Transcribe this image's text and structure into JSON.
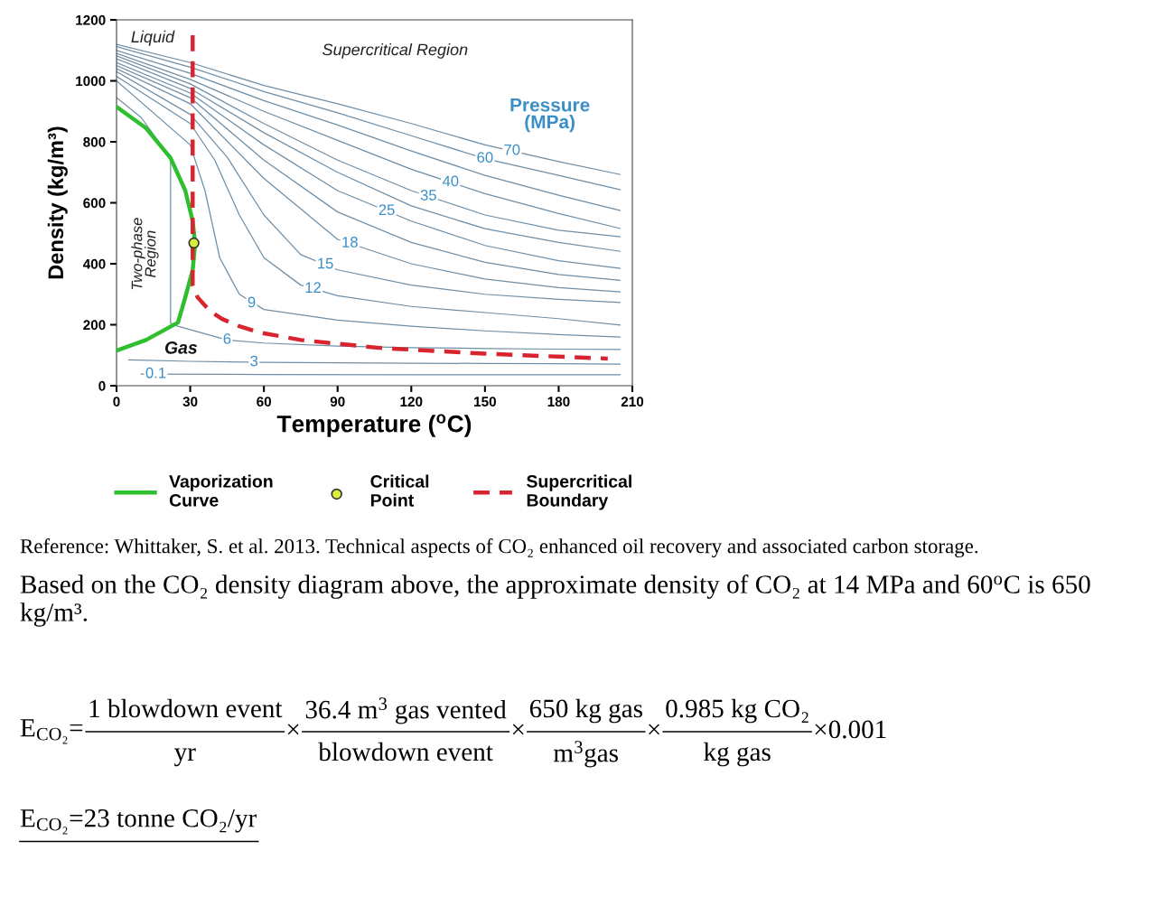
{
  "chart_data": {
    "type": "line",
    "xlabel": "Temperature ($^{o}$C)",
    "ylabel": "Density (kg/m³)",
    "xlim": [
      0,
      210
    ],
    "ylim": [
      0,
      1200
    ],
    "xticks": [
      0,
      30,
      60,
      90,
      120,
      150,
      180,
      210
    ],
    "yticks": [
      0,
      200,
      400,
      600,
      800,
      1000,
      1200
    ],
    "grid": false,
    "legend": "bottom",
    "series": [
      {
        "color": "#6f8ea6",
        "x": [
          0,
          30,
          60,
          90,
          120,
          150,
          180,
          205
        ],
        "values": [
          1120,
          1060,
          985,
          925,
          860,
          790,
          735,
          693
        ]
      },
      {
        "color": "#6f8ea6",
        "x": [
          0,
          30,
          60,
          90,
          120,
          150,
          180,
          205
        ],
        "values": [
          1112,
          1045,
          965,
          895,
          820,
          745,
          690,
          643
        ]
      },
      {
        "color": "#6f8ea6",
        "x": [
          0,
          30,
          60,
          90,
          120,
          150,
          180,
          205
        ],
        "values": [
          1100,
          1025,
          935,
          855,
          770,
          690,
          625,
          575
        ]
      },
      {
        "color": "#6f8ea6",
        "x": [
          0,
          30,
          60,
          90,
          120,
          150,
          180,
          205
        ],
        "values": [
          1090,
          1005,
          900,
          805,
          710,
          630,
          565,
          516
        ]
      },
      {
        "color": "#6f8ea6",
        "x": [
          0,
          30,
          60,
          90,
          120,
          150,
          180,
          205
        ],
        "values": [
          1082,
          990,
          860,
          740,
          640,
          560,
          510,
          489
        ]
      },
      {
        "color": "#6f8ea6",
        "x": [
          0,
          30,
          60,
          90,
          120,
          150,
          180,
          205
        ],
        "values": [
          1072,
          975,
          830,
          700,
          590,
          515,
          470,
          441
        ]
      },
      {
        "color": "#6f8ea6",
        "x": [
          0,
          30,
          60,
          90,
          120,
          150,
          180,
          205
        ],
        "values": [
          1060,
          960,
          790,
          640,
          540,
          460,
          410,
          385
        ]
      },
      {
        "color": "#6f8ea6",
        "x": [
          0,
          30,
          60,
          90,
          120,
          150,
          180,
          205
        ],
        "values": [
          1050,
          945,
          740,
          570,
          470,
          405,
          365,
          346
        ]
      },
      {
        "color": "#6f8ea6",
        "x": [
          0,
          30,
          60,
          90,
          120,
          150,
          180,
          205
        ],
        "values": [
          1040,
          925,
          680,
          480,
          400,
          350,
          322,
          308
        ]
      },
      {
        "color": "#6f8ea6",
        "x": [
          0,
          30,
          45,
          60,
          75,
          90,
          120,
          150,
          180,
          205
        ],
        "values": [
          1030,
          890,
          750,
          560,
          430,
          380,
          330,
          300,
          283,
          273
        ]
      },
      {
        "color": "#6f8ea6",
        "x": [
          0,
          30,
          40,
          50,
          60,
          75,
          90,
          120,
          150,
          180,
          205
        ],
        "values": [
          1015,
          860,
          740,
          560,
          420,
          330,
          295,
          260,
          240,
          220,
          199
        ]
      },
      {
        "color": "#6f8ea6",
        "x": [
          0,
          30,
          36,
          42,
          50,
          60,
          90,
          120,
          150,
          180,
          205
        ],
        "values": [
          1000,
          790,
          640,
          420,
          300,
          250,
          215,
          195,
          180,
          168,
          160
        ]
      },
      {
        "color": "#6f8ea6",
        "x": [
          0,
          10,
          22,
          22,
          25,
          45,
          60,
          90,
          120,
          150,
          180,
          205
        ],
        "values": [
          945,
          880,
          747,
          205,
          195,
          150,
          140,
          130,
          125,
          122,
          120,
          119
        ]
      },
      {
        "color": "#6f8ea6",
        "x": [
          5,
          30,
          60,
          90,
          120,
          150,
          180,
          205
        ],
        "values": [
          85,
          80,
          77,
          75,
          74,
          73,
          72,
          71
        ]
      },
      {
        "color": "#6f8ea6",
        "x": [
          10,
          60,
          120,
          205
        ],
        "values": [
          38,
          37,
          36,
          36
        ]
      },
      {
        "name": "Vaporization\nCurve",
        "color": "#2dbf2d",
        "line_style": "solid",
        "x": [
          0,
          12,
          22,
          28,
          31,
          32,
          31,
          28,
          25,
          12,
          0
        ],
        "values": [
          915,
          845,
          747,
          640,
          540,
          465,
          380,
          290,
          207,
          150,
          115
        ]
      },
      {
        "name": "Critical\nPoint",
        "type": "scatter",
        "marker": "circle",
        "color": "#d9ef3a",
        "x": [
          31.5
        ],
        "values": [
          468
        ]
      },
      {
        "name": "Supercritical\nBoundary",
        "color": "#d9232e",
        "line_style": "dashed",
        "x": [
          31,
          31,
          31,
          33,
          38,
          43,
          50,
          58,
          75,
          107,
          150,
          200
        ],
        "values": [
          1150,
          600,
          330,
          290,
          245,
          219,
          195,
          175,
          150,
          124,
          105,
          89
        ]
      }
    ],
    "annotations": [
      {
        "text": "0.1",
        "x": 16,
        "y": 38
      },
      {
        "text": "3",
        "x": 56,
        "y": 77
      },
      {
        "text": "6",
        "x": 45,
        "y": 150
      },
      {
        "text": "9",
        "x": 55,
        "y": 270
      },
      {
        "text": "12",
        "x": 80,
        "y": 318
      },
      {
        "text": "15",
        "x": 85,
        "y": 397
      },
      {
        "text": "18",
        "x": 95,
        "y": 467
      },
      {
        "text": "25",
        "x": 110,
        "y": 573
      },
      {
        "text": "35",
        "x": 127,
        "y": 621
      },
      {
        "text": "40",
        "x": 136,
        "y": 667
      },
      {
        "text": "60",
        "x": 150,
        "y": 745
      },
      {
        "text": "70",
        "x": 161,
        "y": 770
      },
      "Pressure\n(MPa)",
      "Liquid",
      "Supercritical Region",
      "Two-phase\nRegion",
      "Gas",
      "Reference: Whittaker, S. et al. 2013. Technical aspects of CO₂ enhanced oil recovery and associated carbon storage.",
      "Based on the CO₂ density diagram above, the approximate density of CO₂ at 14 MPa and 60$^{o}$C is 650 kg/m³.",
      "E$_{CO₂}$=",
      "1 blowdown event",
      "yr",
      "×",
      "36.4 m$^{3}$ gas vented",
      "blowdown event",
      "×",
      "650 kg gas",
      "m$^{3}$gas",
      "×",
      "0.985 kg CO₂",
      "kg gas",
      "×0.001",
      "E$_{CO₂}$=23 tonne CO₂/yr"
    ]
  }
}
